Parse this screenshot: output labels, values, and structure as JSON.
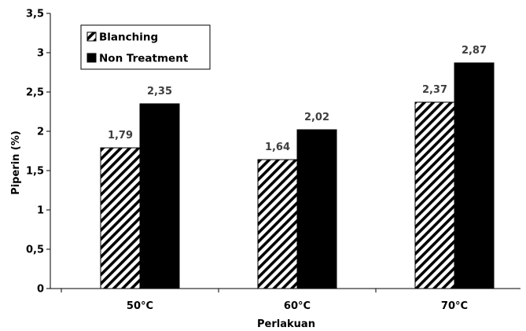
{
  "chart_data": {
    "type": "bar",
    "title": "",
    "xlabel": "Perlakuan",
    "ylabel": "Piperin (%)",
    "ylim": [
      0,
      3.5
    ],
    "yticks": [
      {
        "value": 0,
        "label": "0"
      },
      {
        "value": 0.5,
        "label": "0,5"
      },
      {
        "value": 1,
        "label": "1"
      },
      {
        "value": 1.5,
        "label": "1,5"
      },
      {
        "value": 2,
        "label": "2"
      },
      {
        "value": 2.5,
        "label": "2,5"
      },
      {
        "value": 3,
        "label": "3"
      },
      {
        "value": 3.5,
        "label": "3,5"
      }
    ],
    "categories": [
      "50°C",
      "60°C",
      "70°C"
    ],
    "series": [
      {
        "name": "Blanching",
        "values": [
          1.79,
          1.64,
          2.37
        ],
        "labels": [
          "1,79",
          "1,64",
          "2,37"
        ],
        "fill": "hatch"
      },
      {
        "name": "Non Treatment",
        "values": [
          2.35,
          2.02,
          2.87
        ],
        "labels": [
          "2,35",
          "2,02",
          "2,87"
        ],
        "fill": "#000000"
      }
    ],
    "legend_position": "top-left",
    "grid": false,
    "colors": {
      "axis": "#000000",
      "label": "#3f3f3f",
      "bar_solid": "#000000"
    }
  }
}
